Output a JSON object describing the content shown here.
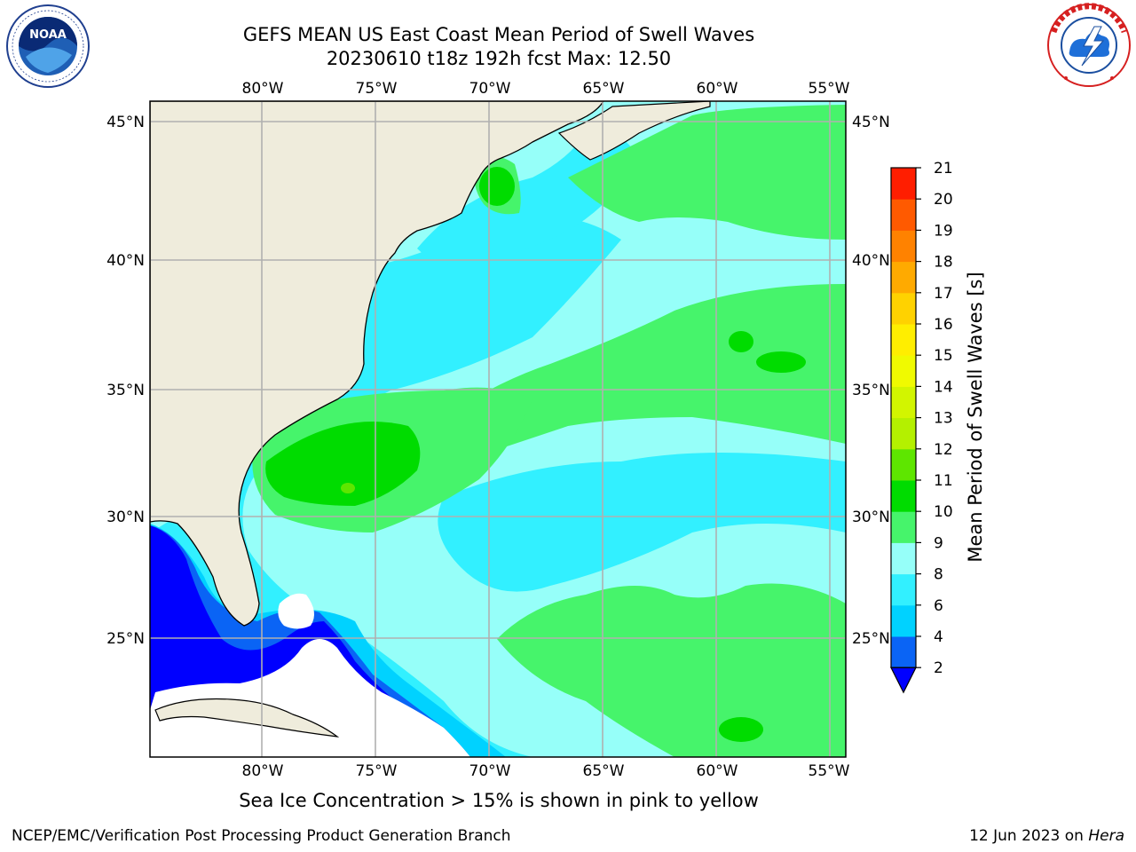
{
  "title_line1": "GEFS MEAN US East Coast Mean Period of Swell Waves",
  "title_line2": "20230610 t18z 192h fcst   Max: 12.50",
  "map": {
    "lon_range": [
      -85,
      -54
    ],
    "lat_range": [
      20.5,
      45.8
    ],
    "lon_ticks": [
      "80°W",
      "75°W",
      "70°W",
      "65°W",
      "60°W",
      "55°W"
    ],
    "lat_ticks": [
      "45°N",
      "40°N",
      "35°N",
      "30°N",
      "25°N"
    ],
    "land_color": "#efecdc",
    "gridline_color": "#b0b0b0"
  },
  "colorbar": {
    "label": "Mean Period of Swell Waves [s]",
    "ticks": [
      "2",
      "4",
      "6",
      "8",
      "9",
      "10",
      "11",
      "12",
      "13",
      "14",
      "15",
      "16",
      "17",
      "18",
      "19",
      "20",
      "21"
    ],
    "colors": [
      "#0a64f5",
      "#00d2ff",
      "#32f0ff",
      "#96fff9",
      "#46f46b",
      "#00dc00",
      "#5ee600",
      "#b4f000",
      "#d2f500",
      "#f0fa00",
      "#ffee00",
      "#ffd200",
      "#ffaa00",
      "#ff8200",
      "#ff5a00",
      "#ff1e00"
    ],
    "extend_low_color": "#0000ff"
  },
  "legend_colors": {
    "deep_blue": "#0000ff",
    "blue": "#0a64f5",
    "cyan": "#00d2ff",
    "light_cyan": "#32f0ff",
    "pale_cyan": "#96fff9",
    "light_green": "#46f46b",
    "green": "#00dc00",
    "yellow_green": "#5ee600"
  },
  "bottom_note": "Sea Ice Concentration > 15% is shown in pink to yellow",
  "credit_left": "NCEP/EMC/Verification Post Processing Product Generation Branch",
  "credit_right_prefix": "12 Jun 2023 on ",
  "credit_right_host": "Hera",
  "logos": {
    "noaa_text": "NOAA",
    "nws_text": "NATIONAL WEATHER SERVICE"
  }
}
